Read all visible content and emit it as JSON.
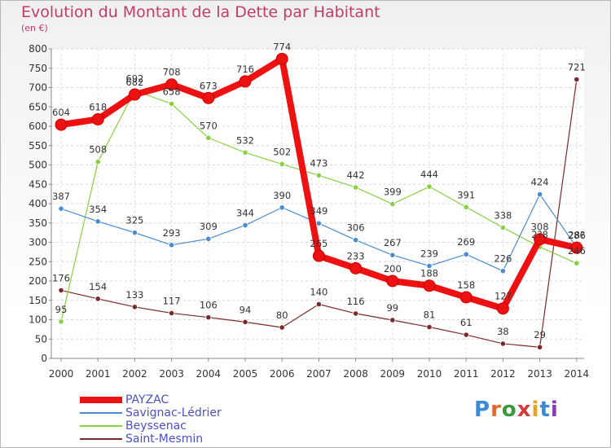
{
  "header": {
    "title": "Evolution du Montant de la Dette par Habitant",
    "subtitle": "(en €)"
  },
  "logo": {
    "text": "Proxiti",
    "colors": [
      "#3a8ad6",
      "#e06a2a",
      "#3a9a3a",
      "#d63a3a",
      "#e8a21a",
      "#3a8ad6",
      "#8a3ab0"
    ]
  },
  "chart_data": {
    "type": "line",
    "x": [
      "2000",
      "2001",
      "2002",
      "2003",
      "2004",
      "2005",
      "2006",
      "2007",
      "2008",
      "2009",
      "2010",
      "2011",
      "2012",
      "2013",
      "2014"
    ],
    "ylim": [
      0,
      800
    ],
    "yticks": [
      "0",
      "50",
      "100",
      "150",
      "200",
      "250",
      "300",
      "350",
      "400",
      "450",
      "500",
      "550",
      "600",
      "650",
      "700",
      "750",
      "800"
    ],
    "grid": true,
    "legend_position": "bottom-left",
    "series": [
      {
        "name": "Saint-Mesmin",
        "color": "#7a2a2a",
        "emphasis": false,
        "values": [
          176,
          154,
          133,
          117,
          106,
          94,
          80,
          140,
          116,
          99,
          81,
          61,
          38,
          29,
          721
        ],
        "labels": [
          "176",
          "154",
          "133",
          "117",
          "106",
          "94",
          "80",
          "140",
          "116",
          "99",
          "81",
          "61",
          "38",
          "29",
          "721"
        ]
      },
      {
        "name": "Beyssenac",
        "color": "#88d040",
        "emphasis": false,
        "values": [
          95,
          508,
          692,
          658,
          570,
          532,
          502,
          473,
          442,
          399,
          444,
          391,
          338,
          288,
          246
        ],
        "labels": [
          "95",
          "508",
          "692",
          "658",
          "570",
          "532",
          "502",
          "473",
          "442",
          "399",
          "444",
          "391",
          "338",
          "2?8",
          "246"
        ]
      },
      {
        "name": "Savignac-Lédrier",
        "color": "#4a8cd0",
        "emphasis": false,
        "values": [
          387,
          354,
          325,
          293,
          309,
          344,
          390,
          349,
          306,
          267,
          239,
          269,
          226,
          424,
          287
        ],
        "labels": [
          "387",
          "354",
          "325",
          "293",
          "309",
          "344",
          "390",
          "349",
          "306",
          "267",
          "239",
          "269",
          "226",
          "424",
          "28?"
        ]
      },
      {
        "name": "PAYZAC",
        "color": "#ee1111",
        "emphasis": true,
        "values": [
          604,
          618,
          682,
          708,
          673,
          716,
          774,
          265,
          233,
          200,
          188,
          158,
          129,
          308,
          286
        ],
        "labels": [
          "604",
          "618",
          "682",
          "708",
          "673",
          "716",
          "774",
          "265",
          "233",
          "200",
          "188",
          "158",
          "12?",
          "308",
          "286"
        ]
      }
    ],
    "legend_order": [
      "PAYZAC",
      "Savignac-Lédrier",
      "Beyssenac",
      "Saint-Mesmin"
    ]
  }
}
